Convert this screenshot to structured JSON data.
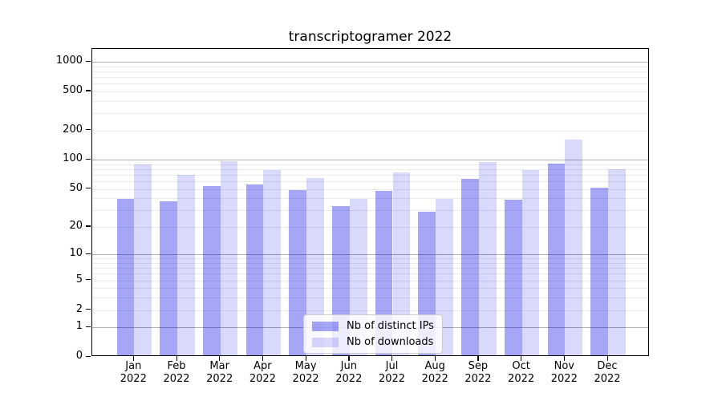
{
  "chart_data": {
    "type": "bar",
    "title": "transcriptogramer 2022",
    "categories": [
      "Jan",
      "Feb",
      "Mar",
      "Apr",
      "May",
      "Jun",
      "Jul",
      "Aug",
      "Sep",
      "Oct",
      "Nov",
      "Dec"
    ],
    "year_label": "2022",
    "series": [
      {
        "name": "Nb of distinct IPs",
        "color": "rgba(0,0,230,0.35)",
        "values": [
          38,
          36,
          52,
          54,
          47,
          32,
          46,
          28,
          61,
          37,
          88,
          50
        ]
      },
      {
        "name": "Nb of downloads",
        "color": "rgba(0,0,230,0.15)",
        "values": [
          87,
          68,
          93,
          76,
          63,
          38,
          71,
          38,
          92,
          75,
          155,
          77
        ]
      }
    ],
    "yscale": "log10(1+x)",
    "ylim": [
      0,
      1352
    ],
    "yticks": [
      0,
      1,
      2,
      5,
      10,
      20,
      50,
      100,
      200,
      500,
      1000
    ],
    "grid": {
      "major": [
        1,
        10,
        100,
        1000
      ],
      "minor": [
        2,
        3,
        4,
        5,
        6,
        7,
        8,
        9,
        20,
        30,
        40,
        50,
        60,
        70,
        80,
        90,
        200,
        300,
        400,
        500,
        600,
        700,
        800,
        900
      ]
    },
    "legend_position": "lower center",
    "colors": {
      "major_grid": "#b0b0b0",
      "minor_grid": "#ececec",
      "spine": "#000000"
    }
  }
}
